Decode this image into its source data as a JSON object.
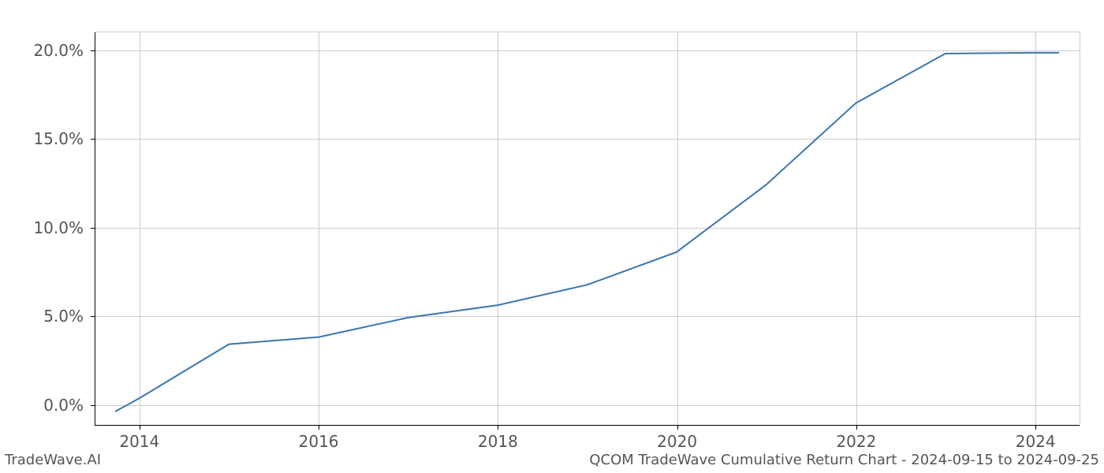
{
  "chart": {
    "type": "line",
    "background_color": "#ffffff",
    "grid_color": "#cccccc",
    "spine_color": "#000000",
    "tick_label_color": "#555555",
    "tick_label_fontsize": 20,
    "line_color": "#3a76af",
    "line_width": 2,
    "x": {
      "min": 2013.5,
      "max": 2024.5,
      "ticks": [
        2014,
        2016,
        2018,
        2020,
        2022,
        2024
      ],
      "tick_labels": [
        "2014",
        "2016",
        "2018",
        "2020",
        "2022",
        "2024"
      ]
    },
    "y": {
      "min": -1.2,
      "max": 21.0,
      "ticks": [
        0,
        5,
        10,
        15,
        20
      ],
      "tick_labels": [
        "0.0%",
        "5.0%",
        "10.0%",
        "15.0%",
        "20.0%"
      ]
    },
    "data_x": [
      2013.73,
      2014,
      2015,
      2016,
      2017,
      2018,
      2019,
      2020,
      2021,
      2022,
      2023,
      2024,
      2024.27
    ],
    "data_y": [
      -0.4,
      0.35,
      3.4,
      3.8,
      4.9,
      5.6,
      6.75,
      8.6,
      12.4,
      17.0,
      19.8,
      19.85,
      19.85
    ]
  },
  "footer": {
    "left": "TradeWave.AI",
    "right": "QCOM TradeWave Cumulative Return Chart - 2024-09-15 to 2024-09-25"
  }
}
